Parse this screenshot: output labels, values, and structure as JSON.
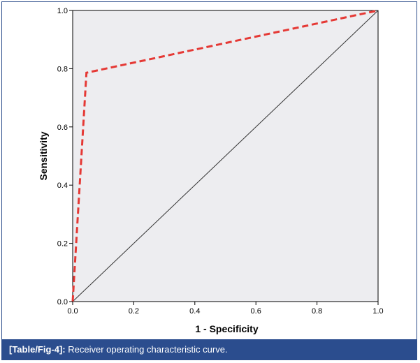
{
  "caption": {
    "label": "[Table/Fig-4]:",
    "text": " Receiver operating characteristic curve."
  },
  "colors": {
    "plot_background": "#ededf0",
    "roc_curve": "#e53935",
    "reference_line": "#333333",
    "caption_background": "#2b4d8e"
  },
  "chart_data": {
    "type": "line",
    "title": "",
    "xlabel": "1 - Specificity",
    "ylabel": "Sensitivity",
    "xlim": [
      0,
      1
    ],
    "ylim": [
      0,
      1
    ],
    "grid": false,
    "legend": "none",
    "x_ticks": [
      "0.0",
      "0.2",
      "0.4",
      "0.6",
      "0.8",
      "1.0"
    ],
    "y_ticks": [
      "0.0",
      "0.2",
      "0.4",
      "0.6",
      "0.8",
      "1.0"
    ],
    "series": [
      {
        "style": "dashed",
        "color": "#e53935",
        "x": [
          0.0,
          0.045,
          1.0
        ],
        "y": [
          0.0,
          0.786,
          1.0
        ]
      },
      {
        "style": "solid",
        "color": "#333333",
        "x": [
          0.0,
          1.0
        ],
        "y": [
          0.0,
          1.0
        ]
      }
    ]
  }
}
